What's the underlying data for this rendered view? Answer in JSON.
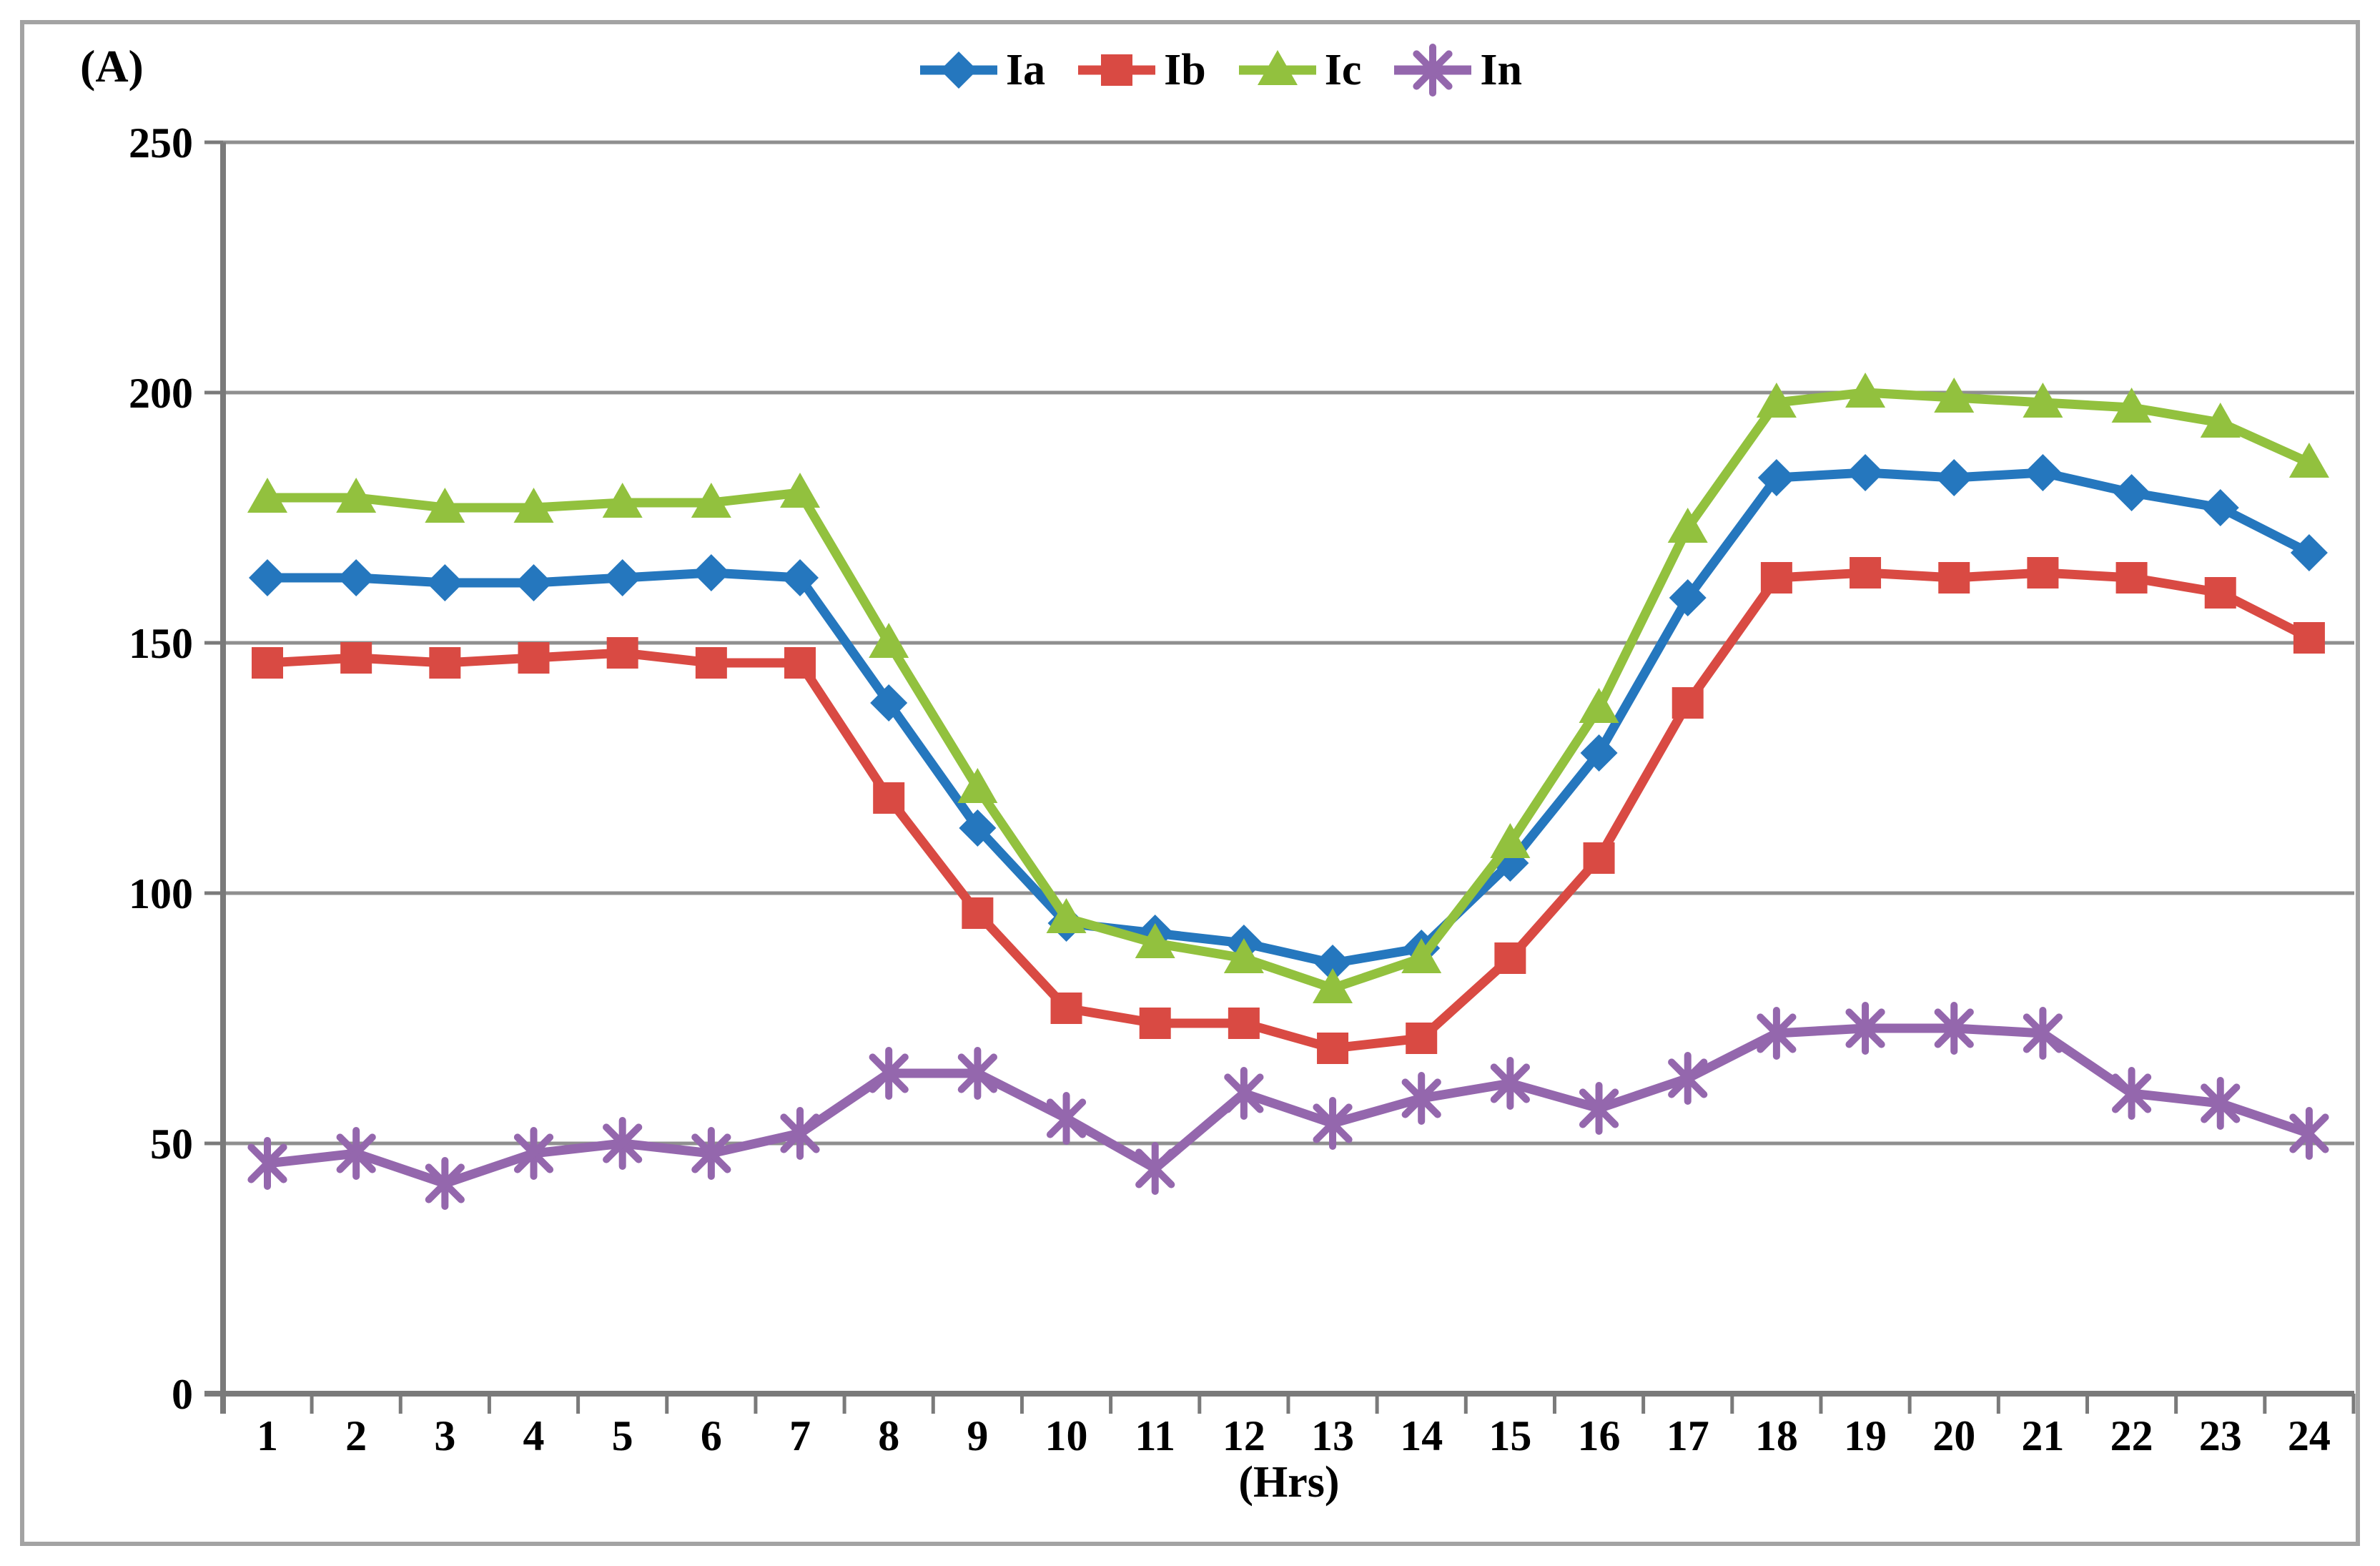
{
  "figure": {
    "y_unit_label": "(A)",
    "x_axis_label": "(Hrs)"
  },
  "chart_data": {
    "type": "line",
    "title": "",
    "ylabel": "(A)",
    "xlabel": "(Hrs)",
    "x": [
      1,
      2,
      3,
      4,
      5,
      6,
      7,
      8,
      9,
      10,
      11,
      12,
      13,
      14,
      15,
      16,
      17,
      18,
      19,
      20,
      21,
      22,
      23,
      24
    ],
    "ylim": [
      0,
      250
    ],
    "yticks": [
      0,
      50,
      100,
      150,
      200,
      250
    ],
    "grid": true,
    "legend_position": "top-center",
    "grid_color": "#8F8F8F",
    "axis_color": "#7A7A7A",
    "border_color": "#A3A3A3",
    "series": [
      {
        "name": "Ia",
        "marker": "diamond",
        "color": "#2577BE",
        "values": [
          163,
          163,
          162,
          162,
          163,
          164,
          163,
          138,
          113,
          94,
          92,
          90,
          86,
          89,
          106,
          128,
          159,
          183,
          184,
          183,
          184,
          180,
          177,
          168
        ]
      },
      {
        "name": "Ib",
        "marker": "square",
        "color": "#D94A43",
        "values": [
          146,
          147,
          146,
          147,
          148,
          146,
          146,
          119,
          96,
          77,
          74,
          74,
          69,
          71,
          87,
          107,
          138,
          163,
          164,
          163,
          164,
          163,
          160,
          151
        ]
      },
      {
        "name": "Ic",
        "marker": "triangle",
        "color": "#92C13E",
        "values": [
          179,
          179,
          177,
          177,
          178,
          178,
          180,
          150,
          121,
          95,
          90,
          87,
          81,
          87,
          110,
          137,
          173,
          198,
          200,
          199,
          198,
          197,
          194,
          186
        ]
      },
      {
        "name": "In",
        "marker": "asterisk",
        "color": "#9467AD",
        "values": [
          46,
          48,
          42,
          48,
          50,
          48,
          52,
          64,
          64,
          55,
          45,
          60,
          54,
          59,
          62,
          57,
          63,
          72,
          73,
          73,
          72,
          60,
          58,
          52
        ]
      }
    ]
  }
}
